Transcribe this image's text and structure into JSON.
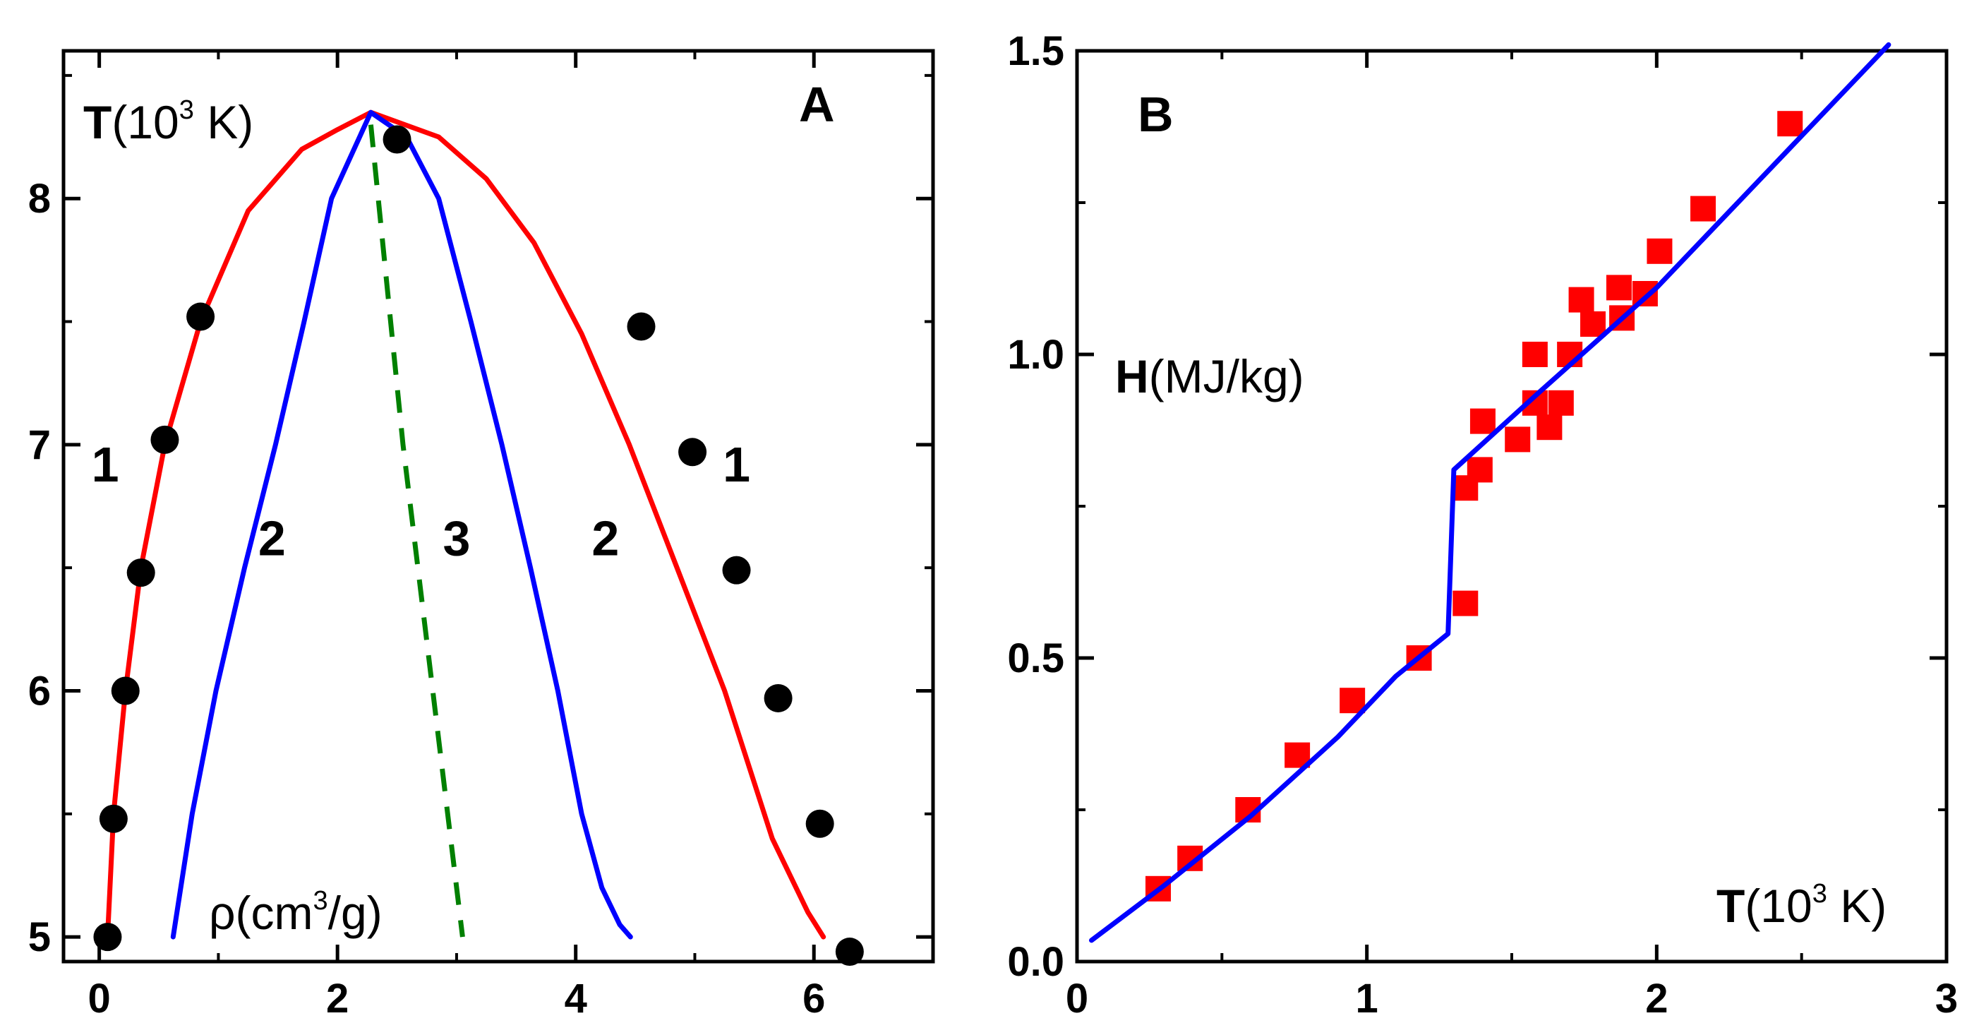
{
  "chart_data": [
    {
      "panel": "A",
      "type": "line",
      "title": "",
      "panel_label": "A",
      "ylabel": {
        "main": "T",
        "open": "(10",
        "sup": "3",
        "unit": " K)"
      },
      "xlabel": {
        "main": "ρ(cm",
        "sup": "3",
        "tail": "/g)"
      },
      "xlim": [
        -0.3,
        7.0
      ],
      "ylim": [
        4.9,
        8.6
      ],
      "xticks": [
        0,
        2,
        4,
        6
      ],
      "xtick_labels": [
        "0",
        "2",
        "4",
        "6"
      ],
      "yticks": [
        5,
        6,
        7,
        8
      ],
      "ytick_labels": [
        "5",
        "6",
        "7",
        "8"
      ],
      "series": [
        {
          "name": "curve-1",
          "color": "#ff0000",
          "style": "solid",
          "x": [
            0.07,
            0.12,
            0.22,
            0.35,
            0.55,
            0.85,
            1.25,
            1.7,
            2.0,
            2.28,
            2.85,
            3.25,
            3.65,
            4.05,
            4.45,
            4.85,
            5.25,
            5.65,
            5.95,
            6.08
          ],
          "y": [
            5.0,
            5.5,
            6.0,
            6.5,
            7.0,
            7.5,
            7.95,
            8.2,
            8.28,
            8.35,
            8.25,
            8.08,
            7.82,
            7.45,
            7.0,
            6.5,
            6.0,
            5.4,
            5.1,
            5.0
          ]
        },
        {
          "name": "curve-2",
          "color": "#0000ff",
          "style": "solid",
          "x": [
            0.62,
            0.78,
            0.98,
            1.22,
            1.48,
            1.72,
            1.95,
            2.28,
            2.58,
            2.85,
            3.12,
            3.38,
            3.62,
            3.85,
            4.05,
            4.22,
            4.37,
            4.46
          ],
          "y": [
            5.0,
            5.5,
            6.0,
            6.5,
            7.0,
            7.5,
            8.0,
            8.35,
            8.25,
            8.0,
            7.5,
            7.0,
            6.5,
            6.0,
            5.5,
            5.2,
            5.05,
            5.0
          ]
        },
        {
          "name": "curve-3",
          "color": "#008000",
          "style": "dashed",
          "x": [
            2.28,
            2.55,
            2.8,
            3.05
          ],
          "y": [
            8.3,
            7.0,
            6.0,
            5.0
          ]
        }
      ],
      "points": {
        "color": "#000000",
        "marker": "circle",
        "x": [
          0.07,
          0.12,
          0.22,
          0.35,
          0.55,
          0.85,
          2.5,
          4.55,
          4.98,
          5.35,
          5.7,
          6.05,
          6.3
        ],
        "y": [
          5.0,
          5.48,
          6.0,
          6.48,
          7.02,
          7.52,
          8.24,
          7.48,
          6.97,
          6.49,
          5.97,
          5.46,
          4.94
        ]
      },
      "curve_labels": [
        {
          "text": "1",
          "x": 0.05,
          "y": 6.85
        },
        {
          "text": "2",
          "x": 1.45,
          "y": 6.55
        },
        {
          "text": "3",
          "x": 3.0,
          "y": 6.55
        },
        {
          "text": "2",
          "x": 4.25,
          "y": 6.55
        },
        {
          "text": "1",
          "x": 5.35,
          "y": 6.85
        }
      ]
    },
    {
      "panel": "B",
      "type": "scatter",
      "title": "",
      "panel_label": "B",
      "ylabel": {
        "main": "H",
        "rest": "(MJ/kg)"
      },
      "xlabel": {
        "main": "T",
        "open": "(10",
        "sup": "3",
        "unit": " K)"
      },
      "xlim": [
        0,
        3
      ],
      "ylim": [
        0,
        1.5
      ],
      "xticks": [
        0,
        1,
        2,
        3
      ],
      "xtick_labels": [
        "0",
        "1",
        "2",
        "3"
      ],
      "yticks": [
        0.0,
        0.5,
        1.0,
        1.5
      ],
      "ytick_labels": [
        "0.0",
        "0.5",
        "1.0",
        "1.5"
      ],
      "series": [
        {
          "name": "fit",
          "color": "#0000ff",
          "style": "solid",
          "x": [
            0.05,
            0.3,
            0.6,
            0.9,
            1.1,
            1.28,
            1.28,
            1.3,
            1.6,
            2.0,
            2.4,
            2.8
          ],
          "y": [
            0.035,
            0.125,
            0.24,
            0.37,
            0.47,
            0.54,
            0.54,
            0.81,
            0.94,
            1.11,
            1.31,
            1.51
          ]
        }
      ],
      "points": {
        "color": "#ff0000",
        "marker": "square",
        "x": [
          0.28,
          0.39,
          0.59,
          0.76,
          0.95,
          1.18,
          1.34,
          1.34,
          1.39,
          1.4,
          1.52,
          1.58,
          1.58,
          1.63,
          1.67,
          1.7,
          1.74,
          1.78,
          1.87,
          1.88,
          1.96,
          2.01,
          2.16,
          2.46
        ],
        "y": [
          0.12,
          0.17,
          0.25,
          0.34,
          0.43,
          0.5,
          0.59,
          0.78,
          0.81,
          0.89,
          0.86,
          0.92,
          1.0,
          0.88,
          0.92,
          1.0,
          1.09,
          1.05,
          1.11,
          1.06,
          1.1,
          1.17,
          1.24,
          1.38
        ]
      }
    }
  ]
}
